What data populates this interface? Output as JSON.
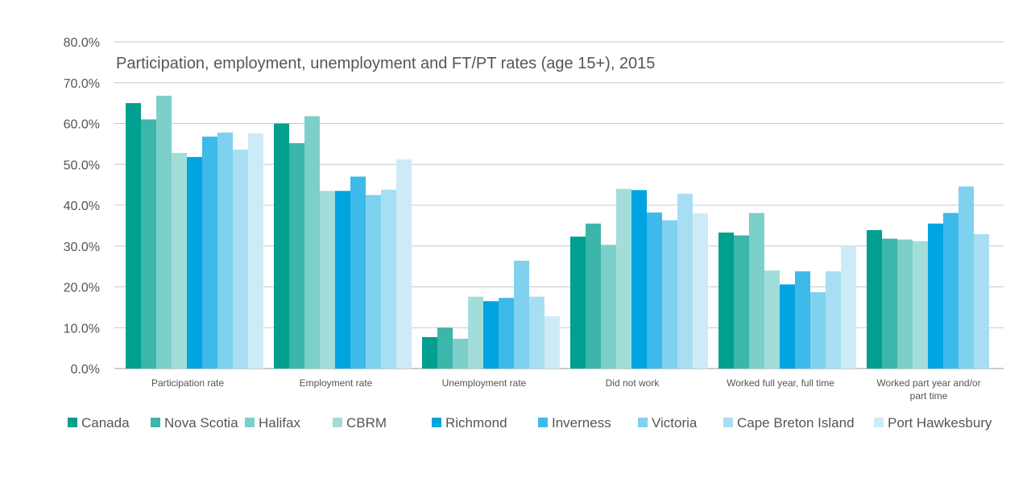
{
  "chart_data": {
    "type": "bar",
    "title": "Participation, employment, unemployment and FT/PT rates (age 15+), 2015",
    "xlabel": "",
    "ylabel": "",
    "ylim": [
      0,
      80
    ],
    "yticks": [
      "0.0%",
      "10.0%",
      "20.0%",
      "30.0%",
      "40.0%",
      "50.0%",
      "60.0%",
      "70.0%",
      "80.0%"
    ],
    "grid": true,
    "legend_position": "bottom",
    "categories": [
      [
        "Participation rate"
      ],
      [
        "Employment rate"
      ],
      [
        "Unemployment rate"
      ],
      [
        "Did not work"
      ],
      [
        "Worked full year, full time"
      ],
      [
        "Worked part year and/or",
        "part time"
      ]
    ],
    "series": [
      {
        "name": "Canada",
        "color": "#009f8f",
        "values": [
          65.0,
          60.0,
          7.7,
          32.3,
          33.3,
          33.9
        ]
      },
      {
        "name": "Nova Scotia",
        "color": "#3cb5aa",
        "values": [
          61.0,
          55.2,
          10.0,
          35.5,
          32.6,
          31.8
        ]
      },
      {
        "name": "Halifax",
        "color": "#7dcfc9",
        "values": [
          66.8,
          61.8,
          7.3,
          30.3,
          38.1,
          31.6
        ]
      },
      {
        "name": "CBRM",
        "color": "#a3ddda",
        "values": [
          52.8,
          43.5,
          17.6,
          44.0,
          24.0,
          31.2
        ]
      },
      {
        "name": "Richmond",
        "color": "#00a4e0",
        "values": [
          51.8,
          43.5,
          16.5,
          43.7,
          20.6,
          35.5
        ]
      },
      {
        "name": "Inverness",
        "color": "#3db9ea",
        "values": [
          56.8,
          47.0,
          17.3,
          38.2,
          23.8,
          38.1
        ]
      },
      {
        "name": "Victoria",
        "color": "#7fd1f0",
        "values": [
          57.8,
          42.5,
          26.4,
          36.3,
          18.7,
          44.6
        ]
      },
      {
        "name": "Cape Breton Island",
        "color": "#a8def3",
        "values": [
          53.6,
          43.8,
          17.6,
          42.8,
          23.8,
          32.9
        ]
      },
      {
        "name": "Port Hawkesbury",
        "color": "#cdebf7",
        "values": [
          57.6,
          51.2,
          12.8,
          38.0,
          30.0,
          null
        ]
      }
    ]
  }
}
